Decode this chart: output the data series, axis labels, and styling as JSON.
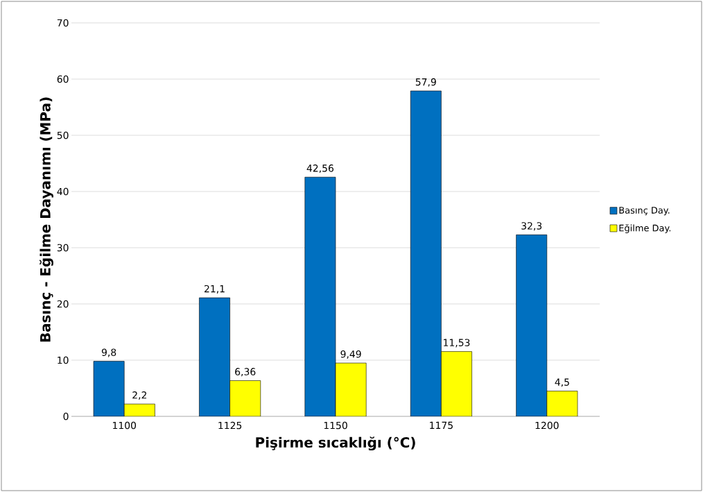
{
  "chart_data": {
    "type": "bar",
    "xlabel": "Pişirme sıcaklığı (°C)",
    "ylabel": "Basınç -  Eğilme Dayanımı (MPa)",
    "categories": [
      "1100",
      "1125",
      "1150",
      "1175",
      "1200"
    ],
    "series": [
      {
        "name": "Basınç Day.",
        "color": "#0070c0",
        "values": [
          9.8,
          21.1,
          42.56,
          57.9,
          32.3
        ],
        "value_labels": [
          "9,8",
          "21,1",
          "42,56",
          "57,9",
          "32,3"
        ]
      },
      {
        "name": "Eğilme Day.",
        "color": "#ffff00",
        "values": [
          2.2,
          6.36,
          9.49,
          11.53,
          4.5
        ],
        "value_labels": [
          "2,2",
          "6,36",
          "9,49",
          "11,53",
          "4,5"
        ]
      }
    ],
    "ylim": [
      0,
      70
    ],
    "yticks": [
      0,
      10,
      20,
      30,
      40,
      50,
      60,
      70
    ],
    "grid": "y",
    "legend": "right"
  }
}
